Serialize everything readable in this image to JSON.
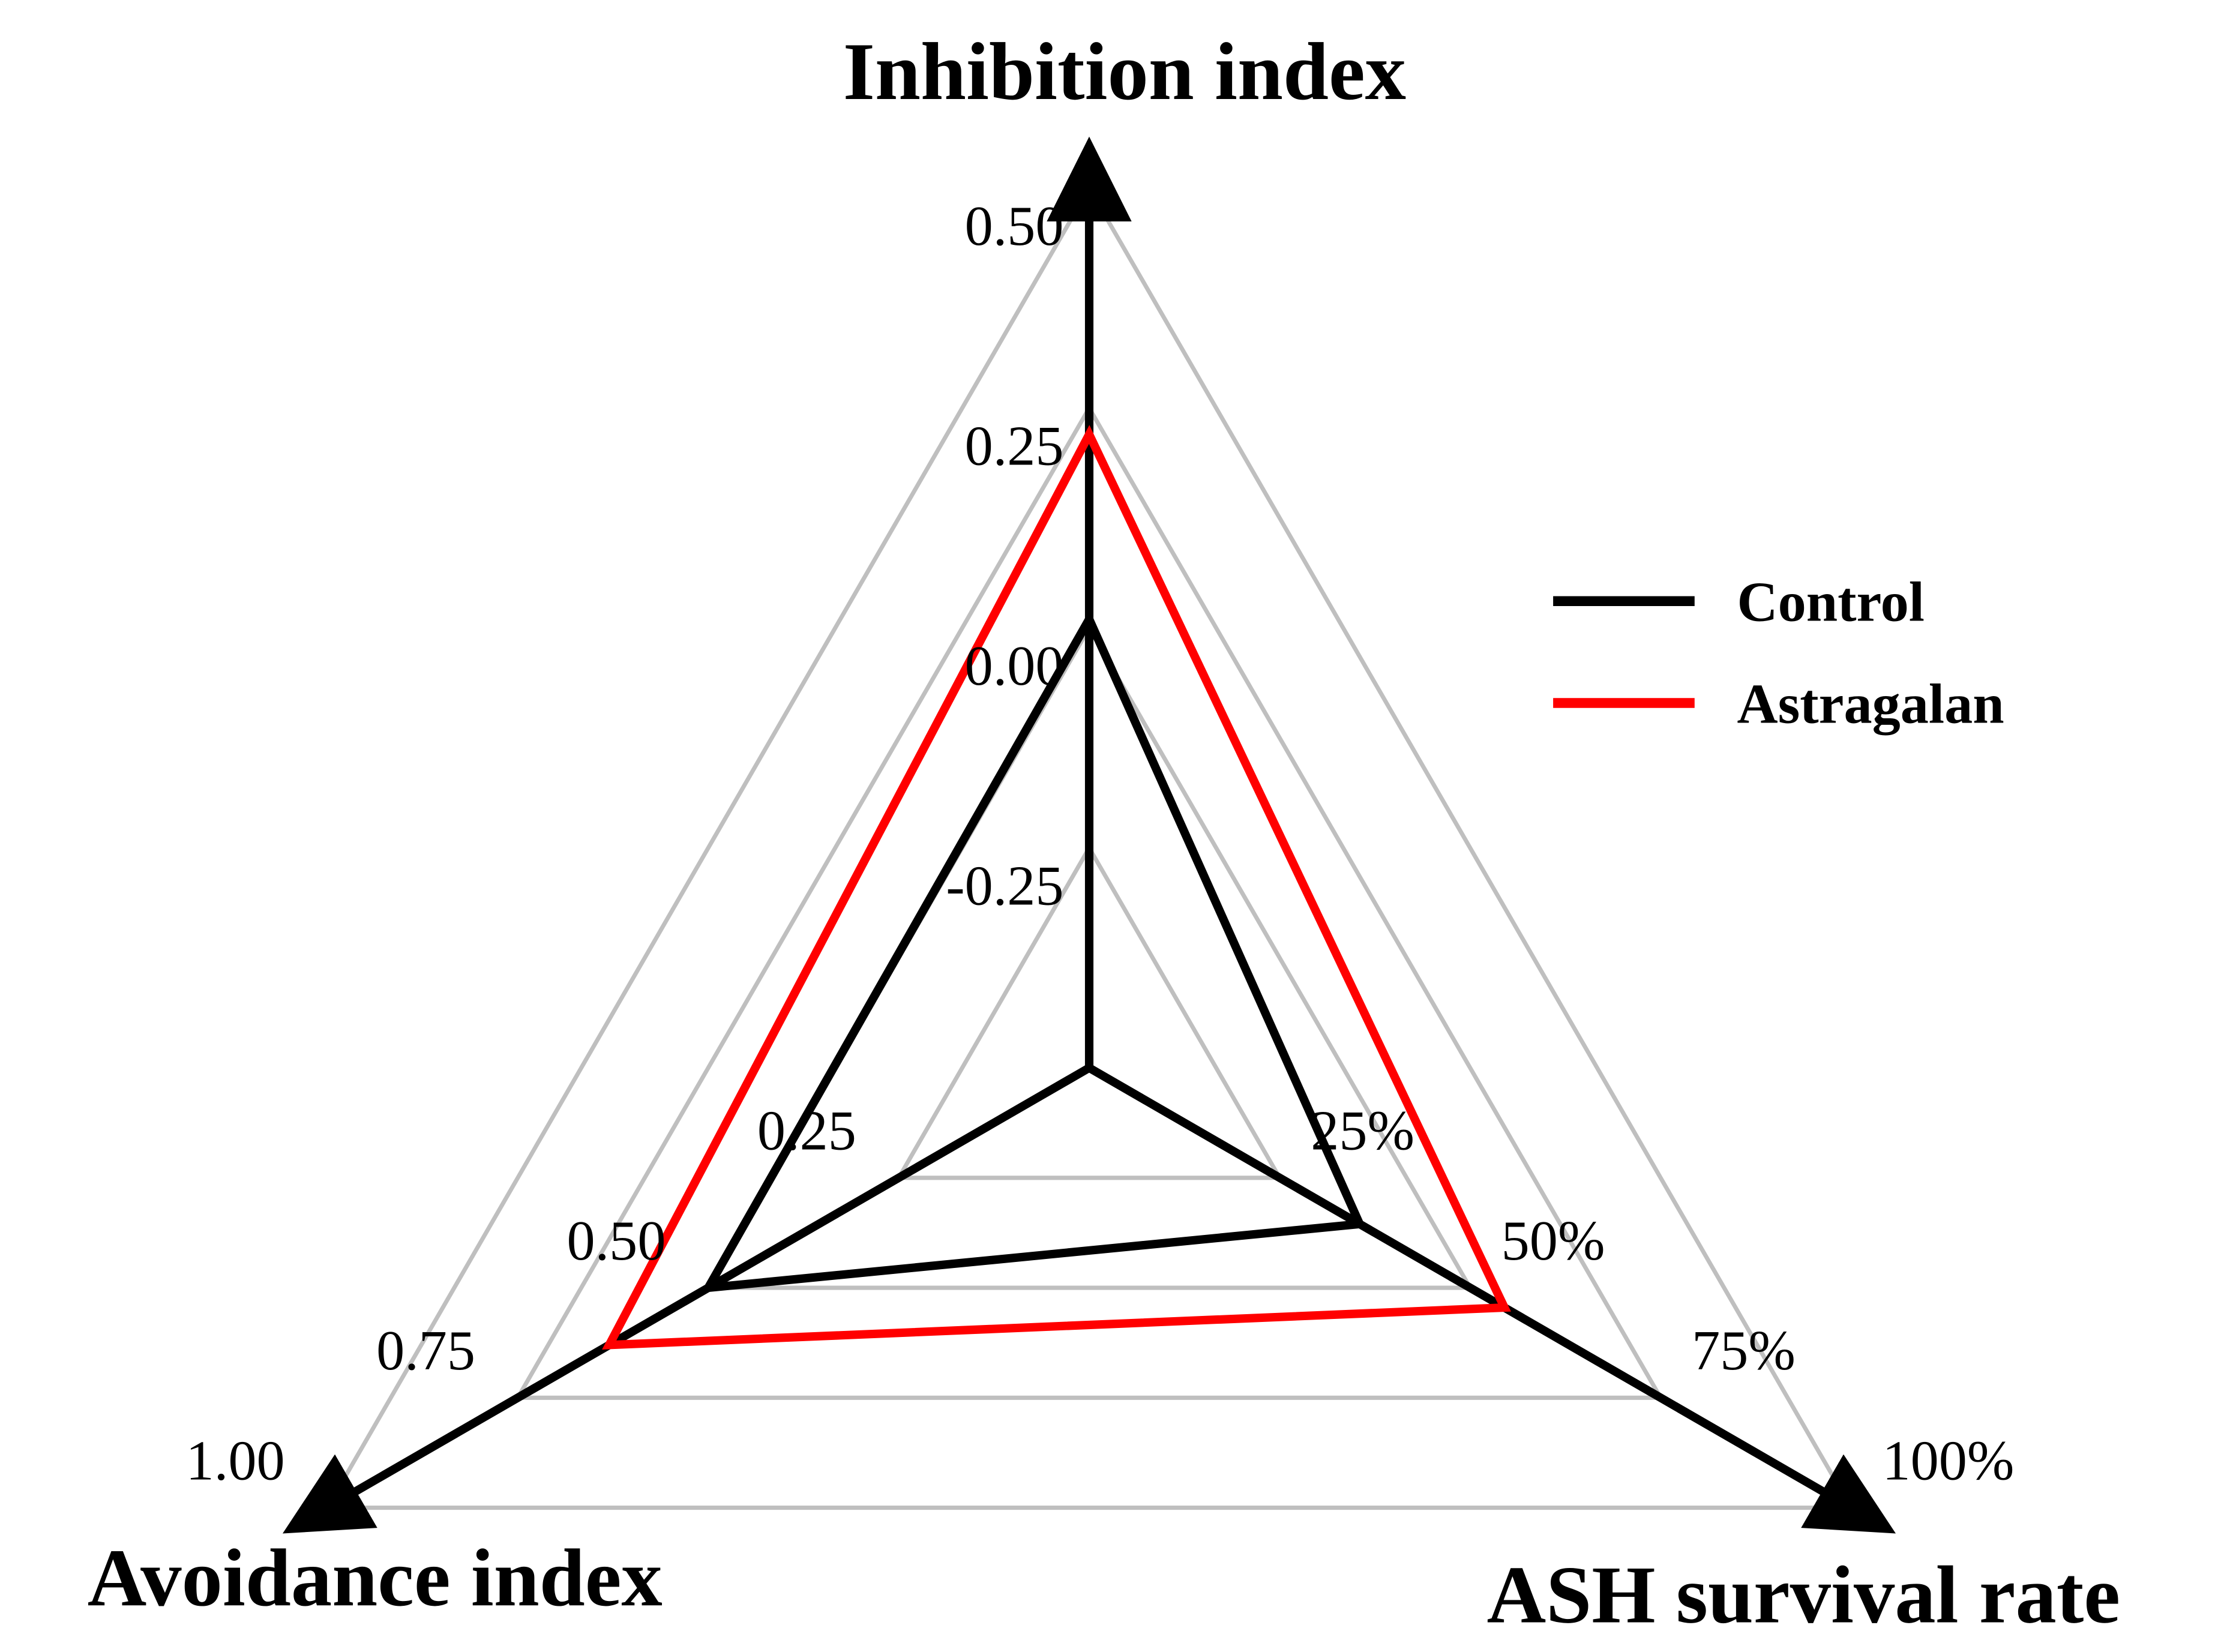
{
  "chart_data": {
    "type": "radar",
    "title": "",
    "axes": [
      {
        "name": "Inhibition index",
        "range": [
          -0.5,
          0.5
        ],
        "ticks": [
          "-0.25",
          "0.00",
          "0.25",
          "0.50"
        ]
      },
      {
        "name": "Avoidance index",
        "range": [
          0,
          1.0
        ],
        "ticks": [
          "0.25",
          "0.50",
          "0.75",
          "1.00"
        ]
      },
      {
        "name": "ASH survival rate",
        "range": [
          0,
          100
        ],
        "ticks": [
          "25%",
          "50%",
          "75%",
          "100%"
        ]
      }
    ],
    "series": [
      {
        "name": "Control",
        "color": "#000000",
        "values": [
          0.01,
          0.5,
          35.5
        ]
      },
      {
        "name": "Astragalan",
        "color": "#ff0000",
        "values": [
          0.22,
          0.63,
          54.5
        ]
      }
    ],
    "grid": true,
    "grid_color": "#bfbfbf",
    "legend_position": "right"
  }
}
